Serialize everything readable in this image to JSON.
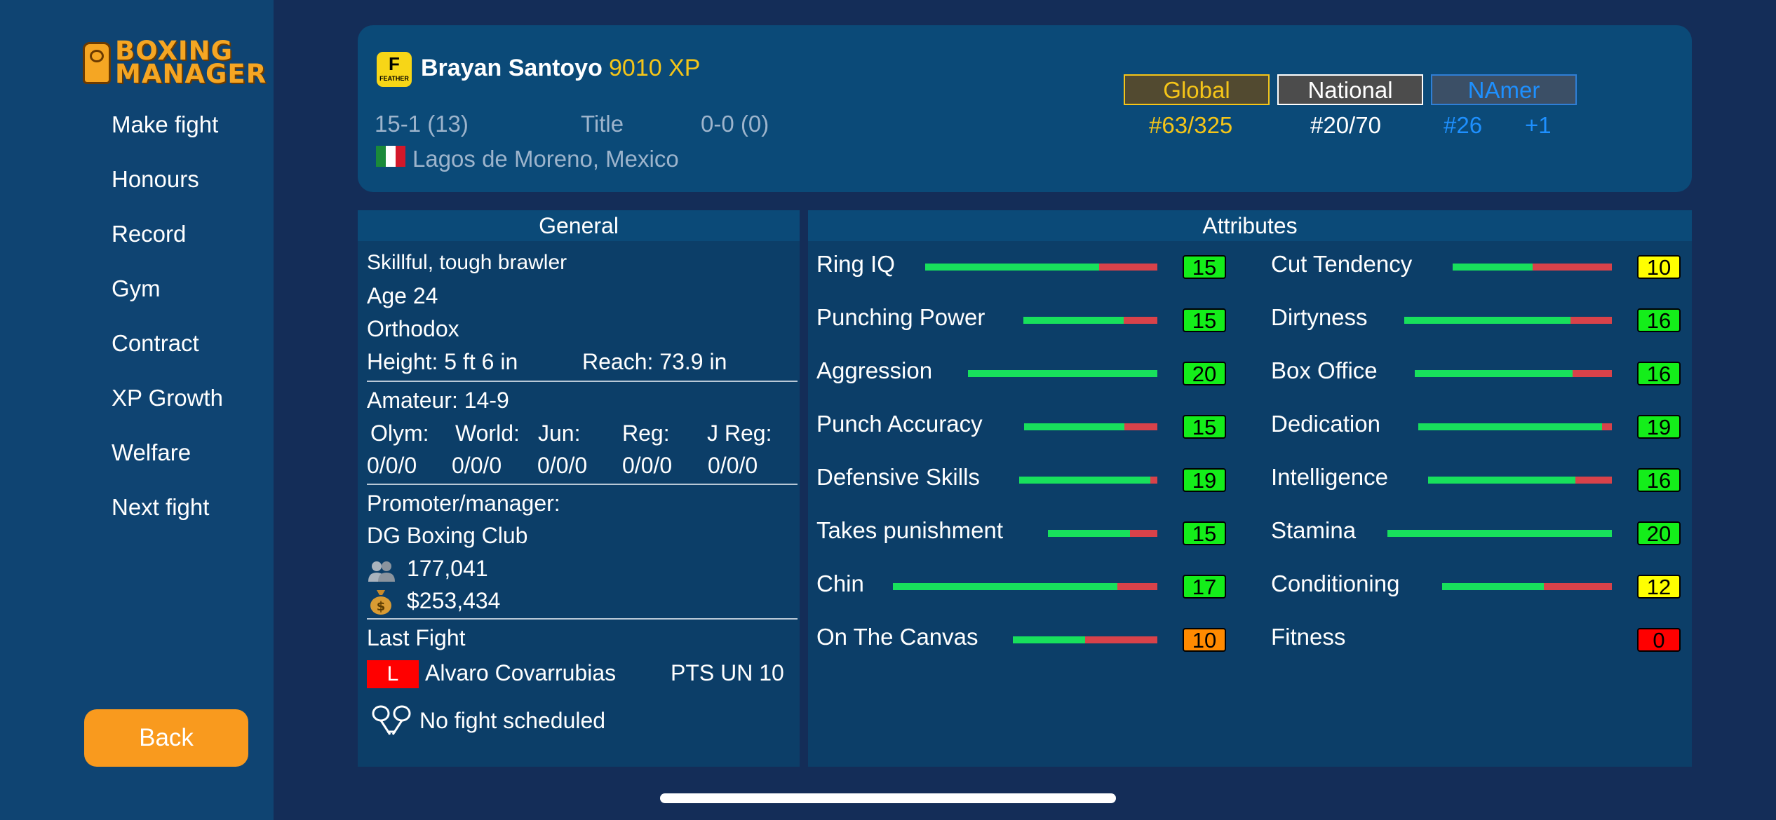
{
  "sidebar": {
    "logo_text": "BOXING MANAGER",
    "logo_line1": "BOXING",
    "logo_line2": "MANAGER",
    "nav": [
      "Make fight",
      "Honours",
      "Record",
      "Gym",
      "Contract",
      "XP Growth",
      "Welfare",
      "Next fight"
    ],
    "back_label": "Back"
  },
  "boxer": {
    "weight_letter": "F",
    "weight_class": "FEATHER",
    "name": "Brayan Santoyo",
    "xp": "9010 XP",
    "record": "15-1 (13)",
    "title_label": "Title",
    "title_record": "0-0 (0)",
    "hometown": "Lagos de Moreno, Mexico",
    "flag": "mexico-flag"
  },
  "rankings": {
    "tabs": [
      {
        "label": "Global",
        "value": "#63/325",
        "color": "#f5c518"
      },
      {
        "label": "National",
        "value": "#20/70",
        "color": "#ffffff"
      },
      {
        "label": "NAmer",
        "value": "#26",
        "color": "#1e90ff"
      }
    ],
    "change": "+1"
  },
  "general": {
    "heading": "General",
    "style": "Skillful, tough brawler",
    "age": "Age 24",
    "stance": "Orthodox",
    "height": "Height: 5 ft 6 in",
    "reach": "Reach: 73.9 in",
    "amateur": "Amateur: 14-9",
    "amateur_cols": [
      {
        "label": "Olym:",
        "value": "0/0/0"
      },
      {
        "label": "World:",
        "value": "0/0/0"
      },
      {
        "label": "Jun:",
        "value": "0/0/0"
      },
      {
        "label": "Reg:",
        "value": "0/0/0"
      },
      {
        "label": "J Reg:",
        "value": "0/0/0"
      }
    ],
    "promoter_label": "Promoter/manager:",
    "promoter": "DG Boxing Club",
    "fans": "177,041",
    "money": "$253,434",
    "last_fight_label": "Last Fight",
    "last_result": "L",
    "last_opponent": "Alvaro Covarrubias",
    "last_method": "PTS UN 10",
    "next_fight": "No fight scheduled"
  },
  "attributes": {
    "heading": "Attributes",
    "left": [
      {
        "label": "Ring IQ",
        "value": "15",
        "level": 0.75,
        "color": "#14ee1a"
      },
      {
        "label": "Punching Power",
        "value": "15",
        "level": 0.75,
        "color": "#14ee1a"
      },
      {
        "label": "Aggression",
        "value": "20",
        "level": 1.0,
        "color": "#14ee1a"
      },
      {
        "label": "Punch Accuracy",
        "value": "15",
        "level": 0.75,
        "color": "#14ee1a"
      },
      {
        "label": "Defensive Skills",
        "value": "19",
        "level": 0.95,
        "color": "#14ee1a"
      },
      {
        "label": "Takes punishment",
        "value": "15",
        "level": 0.75,
        "color": "#14ee1a"
      },
      {
        "label": "Chin",
        "value": "17",
        "level": 0.85,
        "color": "#14ee1a"
      },
      {
        "label": "On The Canvas",
        "value": "10",
        "level": 0.5,
        "color": "#ff8a00"
      }
    ],
    "right": [
      {
        "label": "Cut Tendency",
        "value": "10",
        "level": 0.5,
        "color": "#ffff00"
      },
      {
        "label": "Dirtyness",
        "value": "16",
        "level": 0.8,
        "color": "#14ee1a"
      },
      {
        "label": "Box Office",
        "value": "16",
        "level": 0.8,
        "color": "#14ee1a"
      },
      {
        "label": "Dedication",
        "value": "19",
        "level": 0.95,
        "color": "#14ee1a"
      },
      {
        "label": "Intelligence",
        "value": "16",
        "level": 0.8,
        "color": "#14ee1a"
      },
      {
        "label": "Stamina",
        "value": "20",
        "level": 1.0,
        "color": "#14ee1a"
      },
      {
        "label": "Conditioning",
        "value": "12",
        "level": 0.6,
        "color": "#ffff00"
      },
      {
        "label": "Fitness",
        "value": "0",
        "level": null,
        "color": "#ff0000"
      }
    ]
  }
}
